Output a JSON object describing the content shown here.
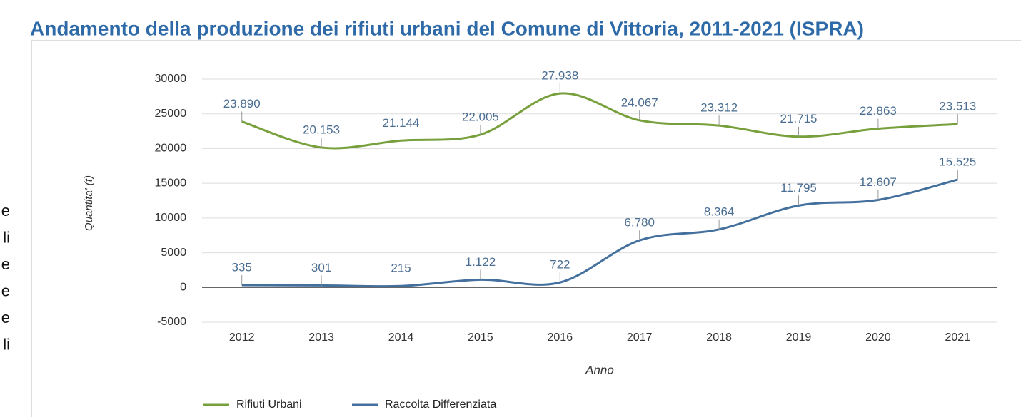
{
  "margin_text": [
    "e",
    "li",
    "e",
    "e",
    "e",
    "li"
  ],
  "chart_data": {
    "type": "line",
    "title": "Andamento della produzione dei rifiuti urbani del Comune di Vittoria, 2011-2021 (ISPRA)",
    "x_label": "Anno",
    "y_label": "Quantita' (t)",
    "categories": [
      "2012",
      "2013",
      "2014",
      "2015",
      "2016",
      "2017",
      "2018",
      "2019",
      "2020",
      "2021"
    ],
    "series": [
      {
        "name": "Rifiuti Urbani",
        "color": "#77a03c",
        "values": [
          23890,
          20153,
          21144,
          22005,
          27938,
          24067,
          23312,
          21715,
          22863,
          23513
        ],
        "value_labels": [
          "23.890",
          "20.153",
          "21.144",
          "22.005",
          "27.938",
          "24.067",
          "23.312",
          "21.715",
          "22.863",
          "23.513"
        ]
      },
      {
        "name": "Raccolta Differenziata",
        "color": "#44709e",
        "values": [
          335,
          301,
          215,
          1122,
          722,
          6780,
          8364,
          11795,
          12607,
          15525
        ],
        "value_labels": [
          "335",
          "301",
          "215",
          "1.122",
          "722",
          "6.780",
          "8.364",
          "11.795",
          "12.607",
          "15.525"
        ]
      }
    ],
    "ylim": [
      -5000,
      30000
    ],
    "yticks": [
      -5000,
      0,
      5000,
      10000,
      15000,
      20000,
      25000,
      30000
    ],
    "grid": true,
    "legend": "bottom"
  }
}
